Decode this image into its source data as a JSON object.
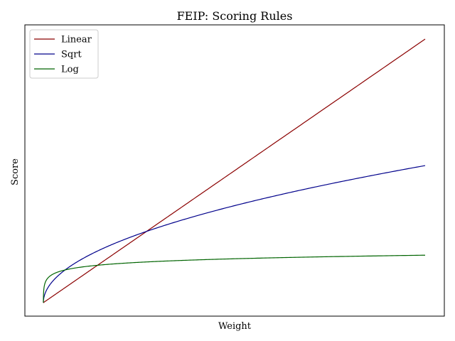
{
  "chart_data": {
    "type": "line",
    "title": "FEIP: Scoring Rules",
    "xlabel": "Weight",
    "ylabel": "Score",
    "xlim": [
      0,
      1
    ],
    "ylim": [
      0,
      1
    ],
    "xticks": [],
    "yticks": [],
    "grid": false,
    "legend": {
      "position": "top-left"
    },
    "series": [
      {
        "name": "Linear",
        "color": "#8b0000",
        "curve": "linear",
        "x": [
          0,
          1
        ],
        "y": [
          0,
          1
        ]
      },
      {
        "name": "Sqrt",
        "color": "#00008b",
        "curve": "sqrt",
        "x": [
          0,
          0.25,
          0.5,
          1
        ],
        "y": [
          0,
          0.24,
          0.33,
          0.52
        ]
      },
      {
        "name": "Log",
        "color": "#006400",
        "curve": "log",
        "x": [
          0,
          0.05,
          0.2,
          1
        ],
        "y": [
          0,
          0.13,
          0.15,
          0.18
        ]
      }
    ]
  }
}
